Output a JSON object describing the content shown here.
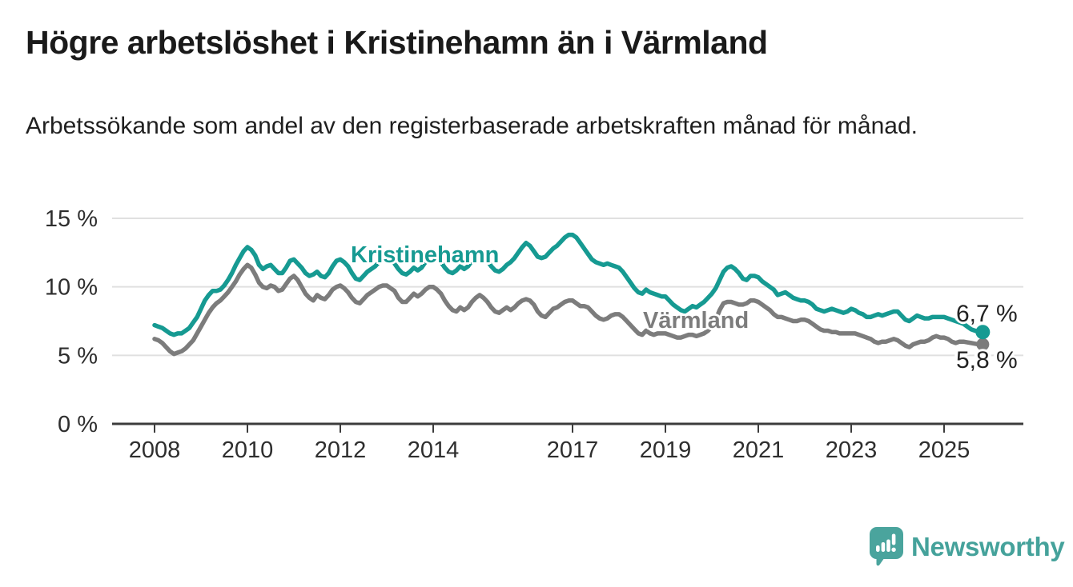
{
  "header": {
    "title": "Högre arbetslöshet i Kristinehamn än i Värmland",
    "subtitle": "Arbetssökande som andel av den registerbaserade arbetskraften månad för månad."
  },
  "chart_data": {
    "type": "line",
    "unit": "%",
    "frequency": "monthly",
    "start": "2008-01",
    "end": "2025-11",
    "ylim": [
      0,
      15
    ],
    "grid": "horizontal",
    "legend_position": "inline-labels",
    "yticks": [
      {
        "value": 0,
        "label": "0 %"
      },
      {
        "value": 5,
        "label": "5 %"
      },
      {
        "value": 10,
        "label": "10 %"
      },
      {
        "value": 15,
        "label": "15 %"
      }
    ],
    "xticks": [
      {
        "value": 2008,
        "label": "2008"
      },
      {
        "value": 2010,
        "label": "2010"
      },
      {
        "value": 2012,
        "label": "2012"
      },
      {
        "value": 2014,
        "label": "2014"
      },
      {
        "value": 2017,
        "label": "2017"
      },
      {
        "value": 2019,
        "label": "2019"
      },
      {
        "value": 2021,
        "label": "2021"
      },
      {
        "value": 2023,
        "label": "2023"
      },
      {
        "value": 2025,
        "label": "2025"
      }
    ],
    "series": [
      {
        "name": "Kristinehamn",
        "color": "#169a92",
        "end_label": "6,7 %",
        "end_value": 6.7,
        "values": [
          7.2,
          7.1,
          7.0,
          6.8,
          6.6,
          6.5,
          6.6,
          6.6,
          6.8,
          7.0,
          7.4,
          7.8,
          8.4,
          9.0,
          9.4,
          9.7,
          9.7,
          9.8,
          10.1,
          10.5,
          11.0,
          11.6,
          12.1,
          12.6,
          12.9,
          12.7,
          12.3,
          11.6,
          11.3,
          11.5,
          11.6,
          11.3,
          11.0,
          11.0,
          11.4,
          11.9,
          12.0,
          11.7,
          11.4,
          11.0,
          10.8,
          10.9,
          11.1,
          10.8,
          10.7,
          11.0,
          11.5,
          11.9,
          12.0,
          11.8,
          11.5,
          11.0,
          10.6,
          10.5,
          10.8,
          11.1,
          11.3,
          11.5,
          11.8,
          12.0,
          12.2,
          12.0,
          11.7,
          11.3,
          11.0,
          10.9,
          11.1,
          11.4,
          11.2,
          11.4,
          11.8,
          12.1,
          12.3,
          12.1,
          11.8,
          11.4,
          11.1,
          11.0,
          11.2,
          11.5,
          11.3,
          11.5,
          11.9,
          12.2,
          12.4,
          12.2,
          11.9,
          11.5,
          11.2,
          11.1,
          11.3,
          11.6,
          11.8,
          12.1,
          12.5,
          12.9,
          13.2,
          13.0,
          12.6,
          12.2,
          12.1,
          12.2,
          12.5,
          12.8,
          13.0,
          13.3,
          13.6,
          13.8,
          13.8,
          13.6,
          13.2,
          12.8,
          12.4,
          12.0,
          11.8,
          11.7,
          11.6,
          11.7,
          11.6,
          11.5,
          11.4,
          11.1,
          10.7,
          10.3,
          9.9,
          9.6,
          9.5,
          9.8,
          9.6,
          9.5,
          9.4,
          9.3,
          9.3,
          9.0,
          8.7,
          8.5,
          8.3,
          8.2,
          8.4,
          8.6,
          8.5,
          8.7,
          8.9,
          9.2,
          9.5,
          9.9,
          10.5,
          11.1,
          11.4,
          11.5,
          11.3,
          11.0,
          10.6,
          10.5,
          10.8,
          10.8,
          10.7,
          10.4,
          10.2,
          10.0,
          9.8,
          9.4,
          9.5,
          9.6,
          9.4,
          9.2,
          9.1,
          9.0,
          9.0,
          8.9,
          8.7,
          8.4,
          8.3,
          8.2,
          8.3,
          8.4,
          8.3,
          8.2,
          8.1,
          8.2,
          8.4,
          8.3,
          8.1,
          8.0,
          7.8,
          7.8,
          7.9,
          8.0,
          7.9,
          8.0,
          8.1,
          8.2,
          8.2,
          7.9,
          7.6,
          7.5,
          7.7,
          7.9,
          7.8,
          7.7,
          7.7,
          7.8,
          7.8,
          7.8,
          7.8,
          7.7,
          7.6,
          7.5,
          7.4,
          7.3,
          7.1,
          6.9,
          6.8,
          6.7,
          6.7
        ]
      },
      {
        "name": "Värmland",
        "color": "#7c7c7c",
        "end_label": "5,8 %",
        "end_value": 5.8,
        "values": [
          6.2,
          6.1,
          5.9,
          5.6,
          5.3,
          5.1,
          5.2,
          5.3,
          5.5,
          5.8,
          6.1,
          6.6,
          7.1,
          7.6,
          8.1,
          8.5,
          8.8,
          9.0,
          9.3,
          9.6,
          10.0,
          10.4,
          10.9,
          11.3,
          11.6,
          11.4,
          10.9,
          10.3,
          10.0,
          9.9,
          10.1,
          10.0,
          9.7,
          9.8,
          10.2,
          10.6,
          10.8,
          10.5,
          10.0,
          9.5,
          9.2,
          9.0,
          9.4,
          9.2,
          9.1,
          9.4,
          9.8,
          10.0,
          10.1,
          9.9,
          9.6,
          9.2,
          8.9,
          8.8,
          9.1,
          9.4,
          9.6,
          9.8,
          10.0,
          10.1,
          10.1,
          9.9,
          9.7,
          9.2,
          8.9,
          8.9,
          9.2,
          9.5,
          9.3,
          9.5,
          9.8,
          10.0,
          10.0,
          9.8,
          9.5,
          9.0,
          8.6,
          8.3,
          8.2,
          8.5,
          8.3,
          8.5,
          8.9,
          9.2,
          9.4,
          9.2,
          8.9,
          8.5,
          8.2,
          8.1,
          8.3,
          8.5,
          8.3,
          8.5,
          8.8,
          9.0,
          9.1,
          9.0,
          8.7,
          8.2,
          7.9,
          7.8,
          8.1,
          8.4,
          8.5,
          8.7,
          8.9,
          9.0,
          9.0,
          8.8,
          8.6,
          8.6,
          8.5,
          8.2,
          7.9,
          7.7,
          7.6,
          7.7,
          7.9,
          8.0,
          8.0,
          7.8,
          7.5,
          7.2,
          6.9,
          6.6,
          6.5,
          6.8,
          6.6,
          6.5,
          6.6,
          6.6,
          6.6,
          6.5,
          6.4,
          6.3,
          6.3,
          6.4,
          6.5,
          6.5,
          6.4,
          6.5,
          6.6,
          6.8,
          7.1,
          7.6,
          8.3,
          8.8,
          8.9,
          8.9,
          8.8,
          8.7,
          8.7,
          8.8,
          9.0,
          9.0,
          8.9,
          8.7,
          8.5,
          8.3,
          8.0,
          7.8,
          7.8,
          7.7,
          7.6,
          7.5,
          7.5,
          7.6,
          7.6,
          7.5,
          7.3,
          7.1,
          6.9,
          6.8,
          6.8,
          6.7,
          6.7,
          6.6,
          6.6,
          6.6,
          6.6,
          6.6,
          6.5,
          6.4,
          6.3,
          6.2,
          6.0,
          5.9,
          6.0,
          6.0,
          6.1,
          6.2,
          6.1,
          5.9,
          5.7,
          5.6,
          5.8,
          5.9,
          6.0,
          6.0,
          6.1,
          6.3,
          6.4,
          6.3,
          6.3,
          6.2,
          6.0,
          5.9,
          6.0,
          6.0,
          5.95,
          5.9,
          5.85,
          5.8,
          5.8
        ]
      }
    ]
  },
  "footer": {
    "brand": "Newsworthy"
  }
}
